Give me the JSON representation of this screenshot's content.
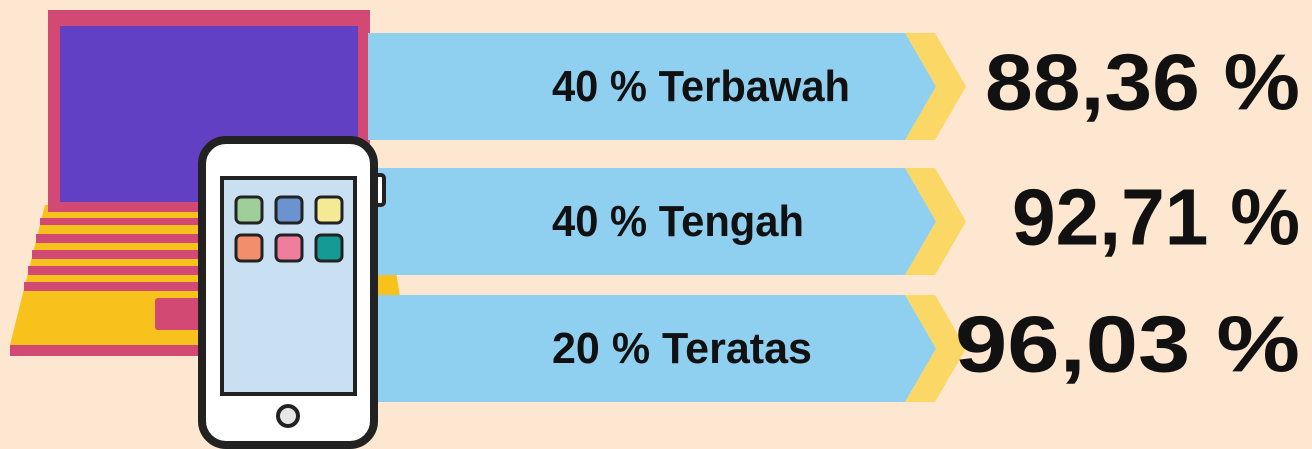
{
  "rows": [
    {
      "label": "40 % Terbawah",
      "value": "88,36 %"
    },
    {
      "label": "40 % Tengah",
      "value": "92,71 %"
    },
    {
      "label": "20 % Teratas",
      "value": "96,03 %"
    }
  ]
}
